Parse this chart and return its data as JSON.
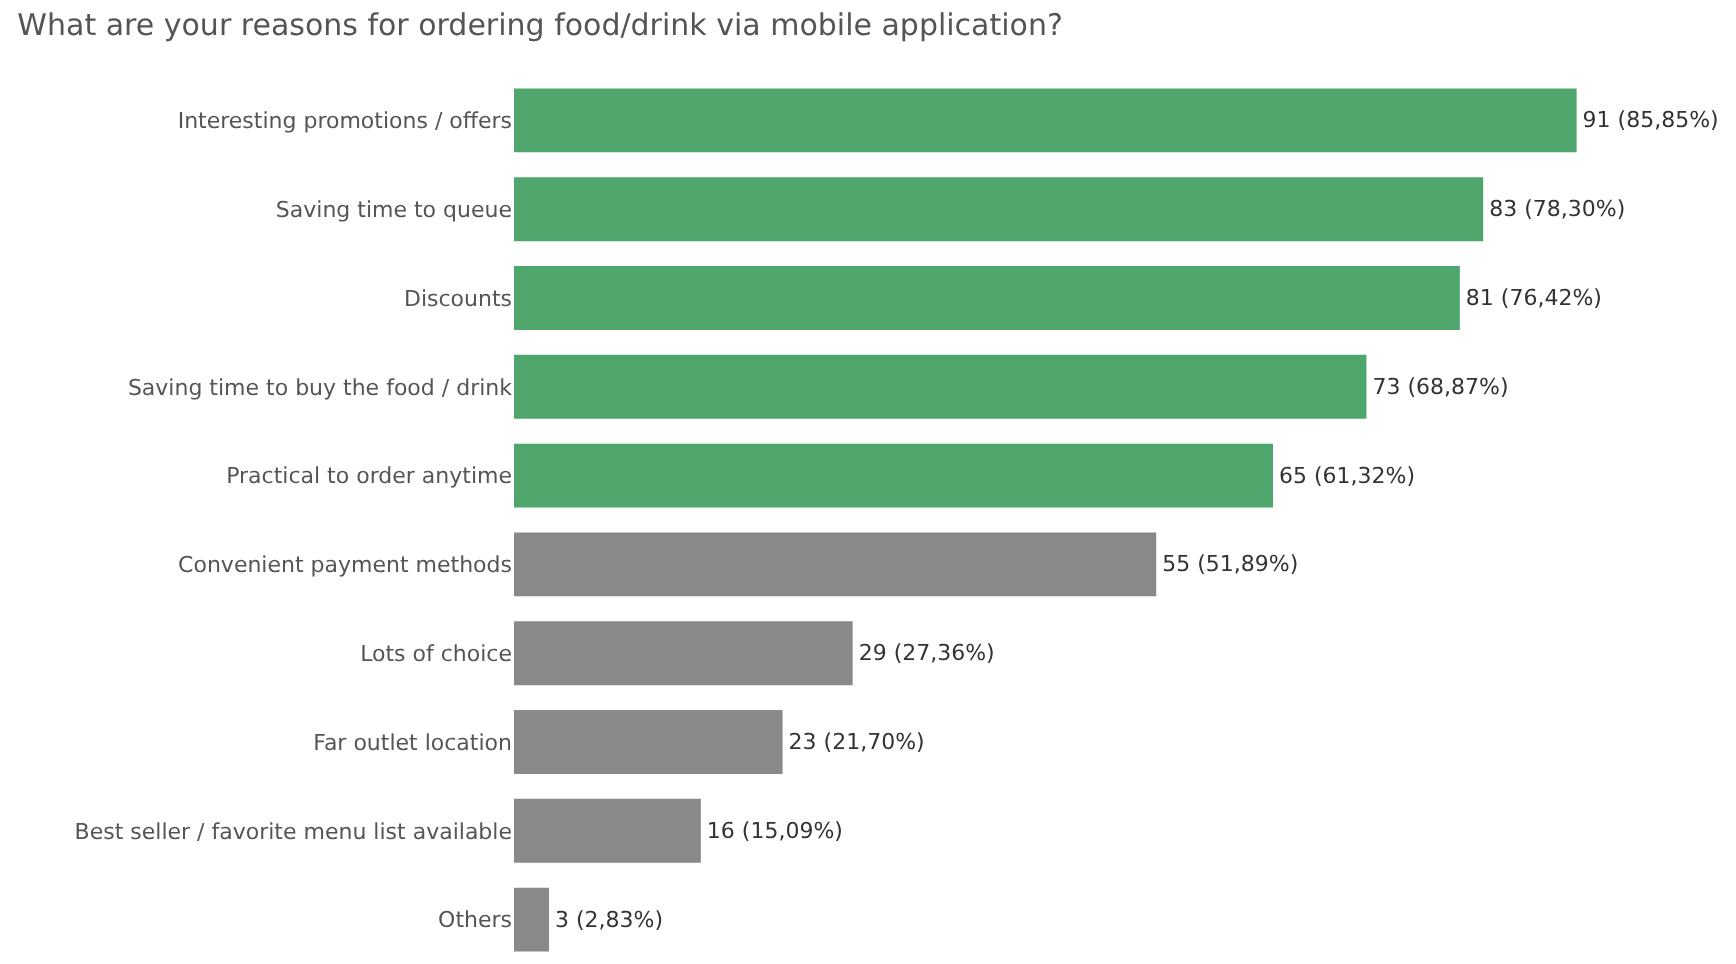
{
  "chart_data": {
    "type": "bar",
    "orientation": "horizontal",
    "title": "What are your reasons for ordering food/drink via mobile application?",
    "categories": [
      "Interesting promotions / offers",
      "Saving time to queue",
      "Discounts",
      "Saving time to buy the food / drink",
      "Practical to order anytime",
      "Convenient payment methods",
      "Lots of choice",
      "Far outlet location",
      "Best seller / favorite menu list available",
      "Others"
    ],
    "values": [
      91,
      83,
      81,
      73,
      65,
      55,
      29,
      23,
      16,
      3
    ],
    "colors": [
      "#4fa66c",
      "#4fa66c",
      "#4fa66c",
      "#4fa66c",
      "#4fa66c",
      "#898989",
      "#898989",
      "#898989",
      "#898989",
      "#898989"
    ],
    "value_labels": [
      "91 (85,85%)",
      "83 (78,30%)",
      "81 (76,42%)",
      "73 (68,87%)",
      "65 (61,32%)",
      "55 (51,89%)",
      "29 (27,36%)",
      "23 (21,70%)",
      "16 (15,09%)",
      "3 (2,83%)"
    ],
    "legend": false
  }
}
